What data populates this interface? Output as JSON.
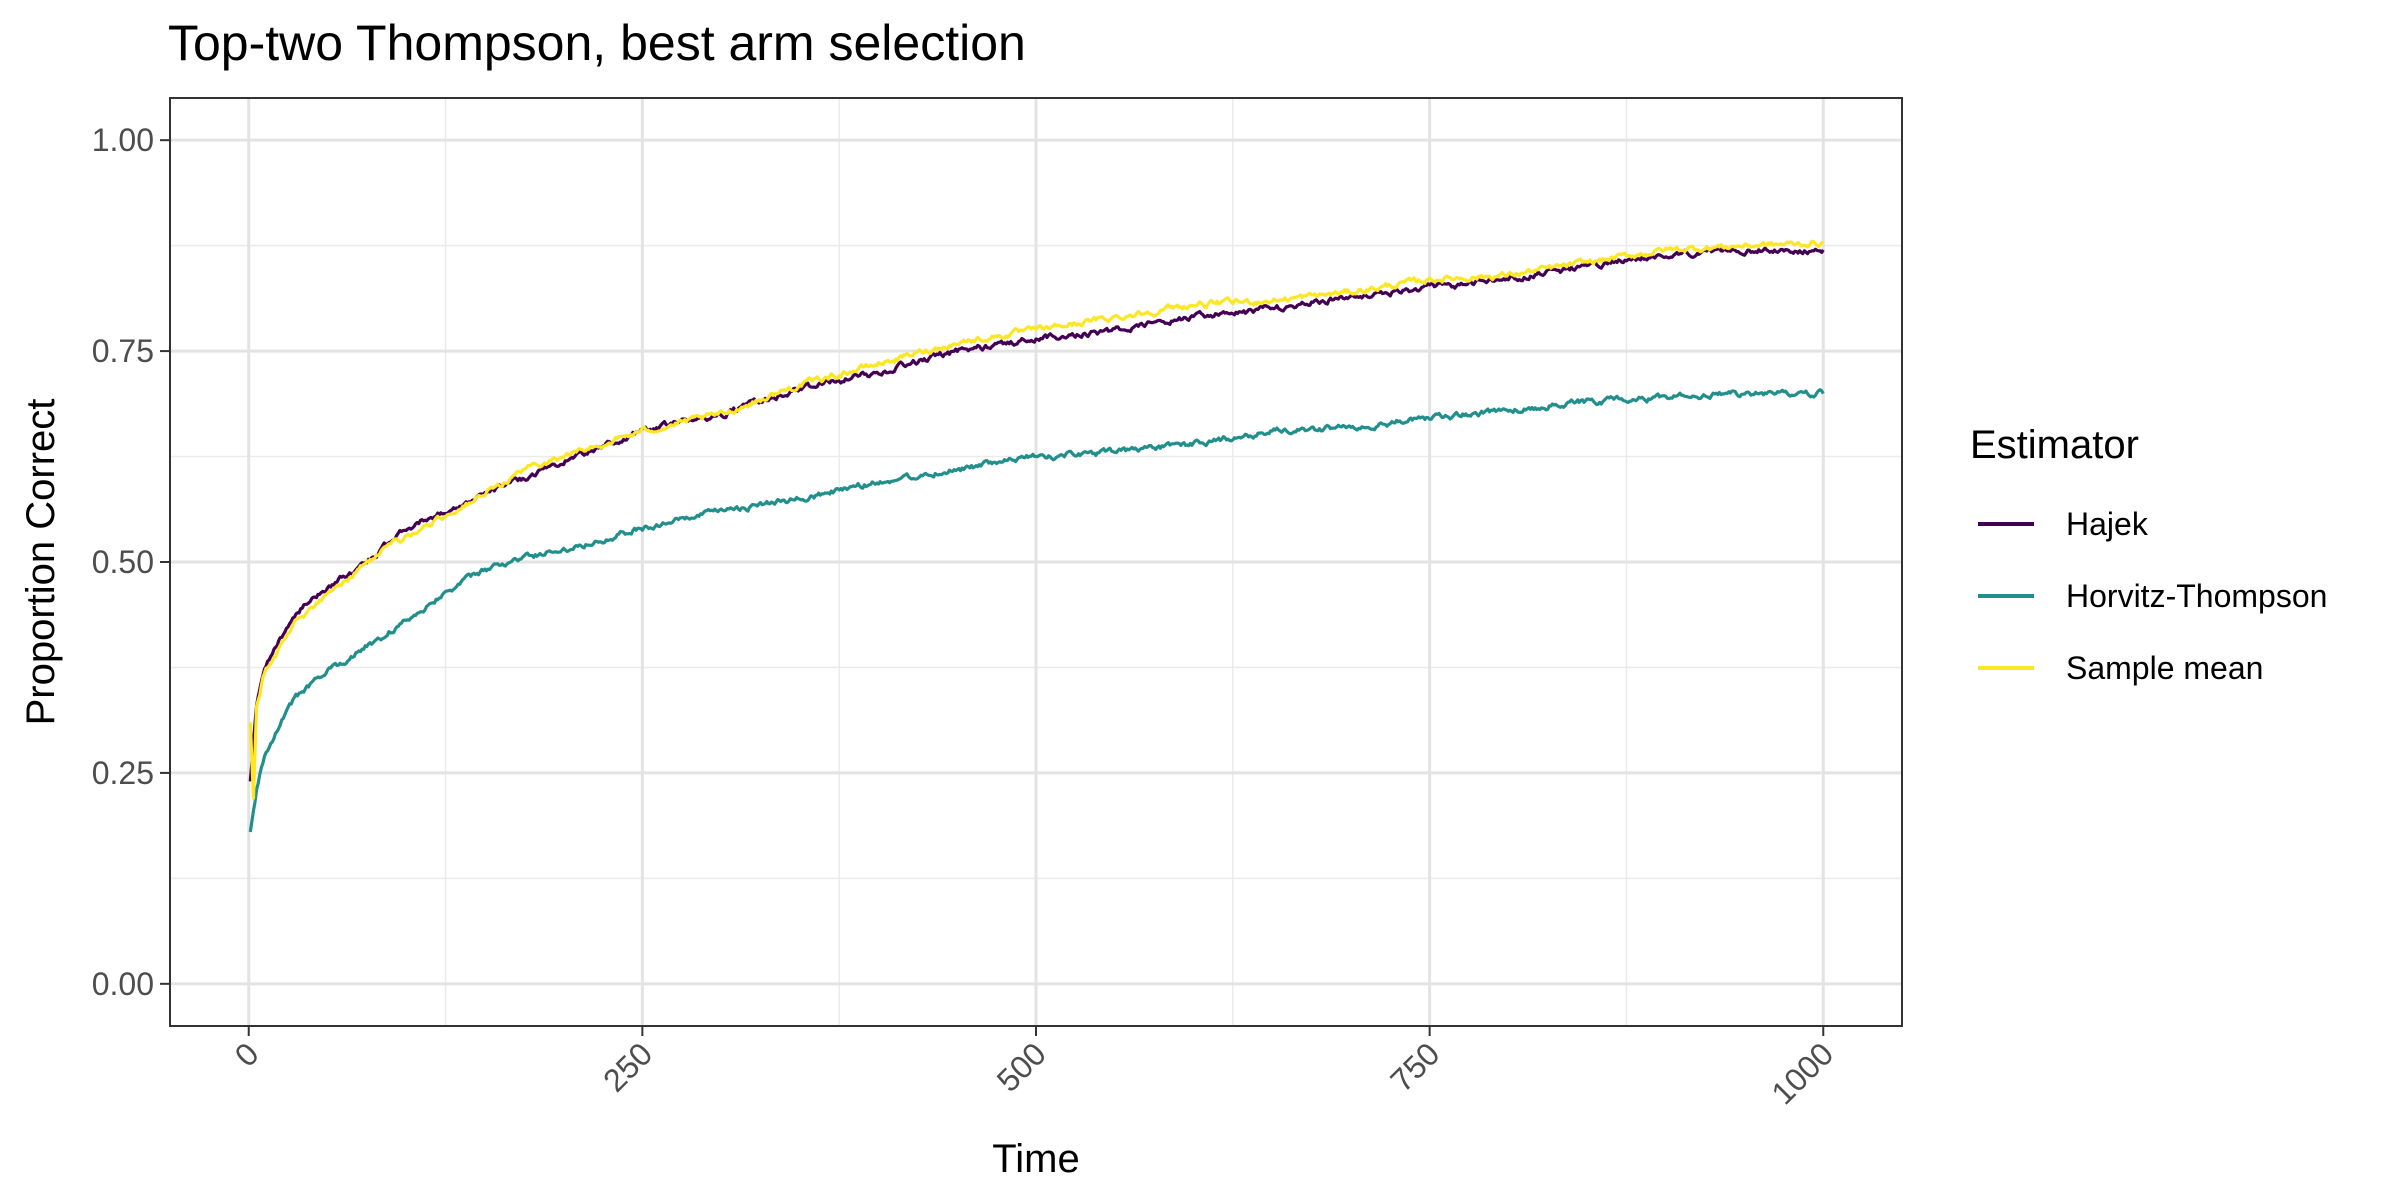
{
  "chart_data": {
    "type": "line",
    "title": "Top-two Thompson, best arm selection",
    "xlabel": "Time",
    "ylabel": "Proportion Correct",
    "xlim": [
      -50,
      1050
    ],
    "ylim": [
      -0.05,
      1.05
    ],
    "x_ticks": [
      0,
      250,
      500,
      750,
      1000
    ],
    "x_tick_labels": [
      "0",
      "250",
      "500",
      "750",
      "1000"
    ],
    "y_ticks": [
      0,
      0.25,
      0.5,
      0.75,
      1.0
    ],
    "y_tick_labels": [
      "0.00",
      "0.25",
      "0.50",
      "0.75",
      "1.00"
    ],
    "grid": true,
    "legend": {
      "title": "Estimator",
      "position": "right"
    },
    "series": [
      {
        "name": "Hajek",
        "color": "#440154",
        "x": [
          1,
          5,
          10,
          20,
          30,
          50,
          75,
          100,
          125,
          150,
          175,
          200,
          250,
          300,
          350,
          400,
          450,
          500,
          550,
          600,
          650,
          700,
          750,
          800,
          850,
          900,
          950,
          1000
        ],
        "y": [
          0.24,
          0.33,
          0.37,
          0.41,
          0.44,
          0.47,
          0.5,
          0.54,
          0.56,
          0.58,
          0.6,
          0.62,
          0.655,
          0.675,
          0.705,
          0.725,
          0.75,
          0.765,
          0.775,
          0.79,
          0.8,
          0.815,
          0.825,
          0.835,
          0.85,
          0.865,
          0.87,
          0.87
        ]
      },
      {
        "name": "Horvitz-Thompson",
        "color": "#21908C",
        "x": [
          1,
          5,
          10,
          20,
          30,
          50,
          75,
          100,
          125,
          150,
          175,
          200,
          250,
          300,
          350,
          400,
          450,
          500,
          550,
          600,
          650,
          700,
          750,
          800,
          850,
          900,
          950,
          1000
        ],
        "y": [
          0.18,
          0.23,
          0.27,
          0.31,
          0.34,
          0.37,
          0.4,
          0.43,
          0.465,
          0.49,
          0.505,
          0.515,
          0.54,
          0.56,
          0.575,
          0.595,
          0.61,
          0.625,
          0.63,
          0.64,
          0.655,
          0.66,
          0.67,
          0.68,
          0.69,
          0.695,
          0.7,
          0.7
        ]
      },
      {
        "name": "Sample mean",
        "color": "#FDE725",
        "x": [
          1,
          3,
          5,
          10,
          20,
          30,
          50,
          75,
          100,
          125,
          150,
          175,
          200,
          250,
          300,
          350,
          400,
          450,
          500,
          550,
          600,
          650,
          700,
          750,
          800,
          850,
          900,
          950,
          1000
        ],
        "y": [
          0.31,
          0.22,
          0.33,
          0.37,
          0.4,
          0.43,
          0.46,
          0.5,
          0.53,
          0.555,
          0.58,
          0.61,
          0.625,
          0.655,
          0.675,
          0.71,
          0.735,
          0.76,
          0.775,
          0.79,
          0.805,
          0.81,
          0.82,
          0.835,
          0.84,
          0.855,
          0.87,
          0.875,
          0.878
        ]
      }
    ]
  }
}
